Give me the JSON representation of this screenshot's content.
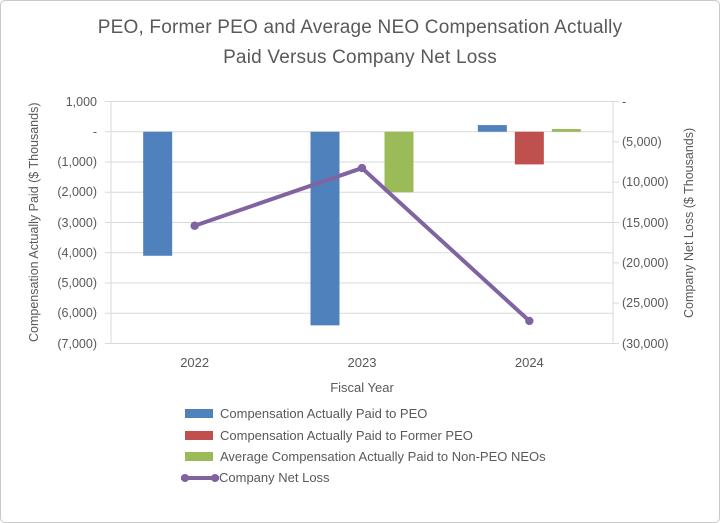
{
  "window": {
    "background": "#ffffff",
    "border_color": "#c9c9c9"
  },
  "chart_data": {
    "type": "combo",
    "title": "PEO, Former PEO and Average NEO Compensation Actually Paid Versus Company Net Loss",
    "title_lines": [
      "PEO, Former PEO and Average NEO Compensation Actually",
      "Paid Versus Company Net Loss"
    ],
    "xlabel": "Fiscal Year",
    "categories": [
      "2022",
      "2023",
      "2024"
    ],
    "left_axis": {
      "label": "Compensation Actually Paid ($ Thousands)",
      "max": 1000,
      "min": -7000,
      "step": 1000,
      "tick_labels": [
        "1,000",
        "-",
        "(1,000)",
        "(2,000)",
        "(3,000)",
        "(4,000)",
        "(5,000)",
        "(6,000)",
        "(7,000)"
      ]
    },
    "right_axis": {
      "label": "Company Net Loss ($ Thousands)",
      "max": 0,
      "min": -30000,
      "step": 5000,
      "tick_labels": [
        "-",
        "(5,000)",
        "(10,000)",
        "(15,000)",
        "(20,000)",
        "(25,000)",
        "(30,000)"
      ]
    },
    "series": [
      {
        "name": "Compensation Actually Paid to PEO",
        "type": "bar",
        "axis": "left",
        "color": "#4F81BD",
        "values": [
          -4100,
          -6400,
          220
        ]
      },
      {
        "name": "Compensation Actually Paid to Former PEO",
        "type": "bar",
        "axis": "left",
        "color": "#C0504D",
        "values": [
          null,
          null,
          -1080
        ]
      },
      {
        "name": "Average Compensation Actually Paid to Non-PEO NEOs",
        "type": "bar",
        "axis": "left",
        "color": "#9BBB59",
        "values": [
          null,
          -2000,
          90
        ]
      },
      {
        "name": "Company Net Loss",
        "type": "line",
        "axis": "right",
        "color": "#8064A2",
        "values": [
          -15400,
          -8250,
          -27200
        ]
      }
    ],
    "gridlines": true,
    "gridline_color": "#D9D9D9",
    "text_color": "#595959",
    "legend_position": "bottom-left"
  }
}
